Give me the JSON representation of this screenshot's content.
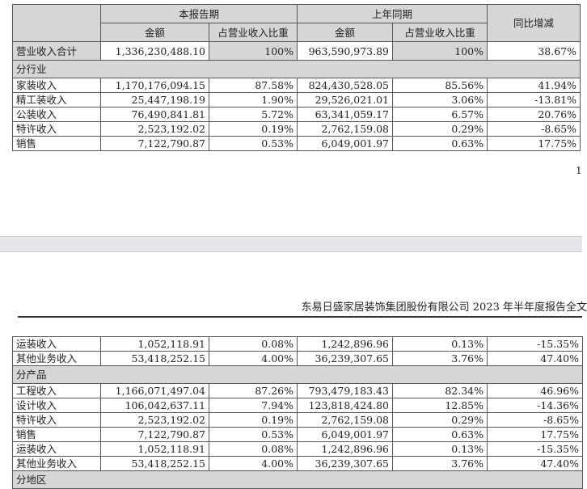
{
  "page1": {
    "header": {
      "current_period": "本报告期",
      "prior_period": "上年同期",
      "yoy": "同比增减",
      "amount": "金额",
      "ratio": "占营业收入比重"
    },
    "total": {
      "label": "营业收入合计",
      "cur": "1,336,230,488.10",
      "cur_pct": "100%",
      "prev": "963,590,973.89",
      "prev_pct": "100%",
      "yoy": "38.67%"
    },
    "section": "分行业",
    "rows": [
      {
        "label": "家装收入",
        "cur": "1,170,176,094.15",
        "cur_pct": "87.58%",
        "prev": "824,430,528.05",
        "prev_pct": "85.56%",
        "yoy": "41.94%"
      },
      {
        "label": "精工装收入",
        "cur": "25,447,198.19",
        "cur_pct": "1.90%",
        "prev": "29,526,021.01",
        "prev_pct": "3.06%",
        "yoy": "-13.81%"
      },
      {
        "label": "公装收入",
        "cur": "76,490,841.81",
        "cur_pct": "5.72%",
        "prev": "63,341,059.17",
        "prev_pct": "6.57%",
        "yoy": "20.76%"
      },
      {
        "label": "特许收入",
        "cur": "2,523,192.02",
        "cur_pct": "0.19%",
        "prev": "2,762,159.08",
        "prev_pct": "0.29%",
        "yoy": "-8.65%"
      },
      {
        "label": "销售",
        "cur": "7,122,790.87",
        "cur_pct": "0.53%",
        "prev": "6,049,001.97",
        "prev_pct": "0.63%",
        "yoy": "17.75%"
      }
    ],
    "page_number": "1"
  },
  "page2": {
    "running_header": "东易日盛家居装饰集团股份有限公司 2023 年半年度报告全文",
    "rows_a": [
      {
        "label": "运装收入",
        "cur": "1,052,118.91",
        "cur_pct": "0.08%",
        "prev": "1,242,896.96",
        "prev_pct": "0.13%",
        "yoy": "-15.35%"
      },
      {
        "label": "其他业务收入",
        "cur": "53,418,252.15",
        "cur_pct": "4.00%",
        "prev": "36,239,307.65",
        "prev_pct": "3.76%",
        "yoy": "47.40%"
      }
    ],
    "section": "分产品",
    "rows_b": [
      {
        "label": "工程收入",
        "cur": "1,166,071,497.04",
        "cur_pct": "87.26%",
        "prev": "793,479,183.43",
        "prev_pct": "82.34%",
        "yoy": "46.96%"
      },
      {
        "label": "设计收入",
        "cur": "106,042,637.11",
        "cur_pct": "7.94%",
        "prev": "123,818,424.80",
        "prev_pct": "12.85%",
        "yoy": "-14.36%"
      },
      {
        "label": "特许收入",
        "cur": "2,523,192.02",
        "cur_pct": "0.19%",
        "prev": "2,762,159.08",
        "prev_pct": "0.29%",
        "yoy": "-8.65%"
      },
      {
        "label": "销售",
        "cur": "7,122,790.87",
        "cur_pct": "0.53%",
        "prev": "6,049,001.97",
        "prev_pct": "0.63%",
        "yoy": "17.75%"
      },
      {
        "label": "运装收入",
        "cur": "1,052,118.91",
        "cur_pct": "0.08%",
        "prev": "1,242,896.96",
        "prev_pct": "0.13%",
        "yoy": "-15.35%"
      },
      {
        "label": "其他业务收入",
        "cur": "53,418,252.15",
        "cur_pct": "4.00%",
        "prev": "36,239,307.65",
        "prev_pct": "3.76%",
        "yoy": "47.40%"
      }
    ],
    "section_cut": "分地区"
  }
}
